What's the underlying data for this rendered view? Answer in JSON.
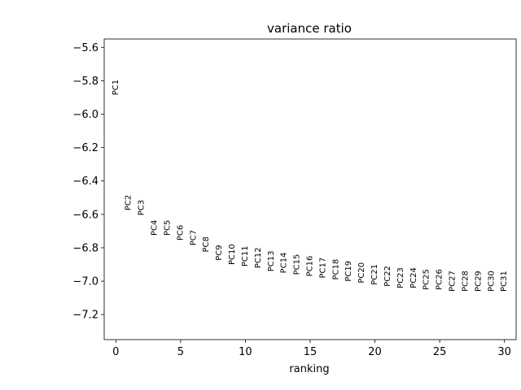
{
  "chart_data": {
    "type": "scatter",
    "title": "variance ratio",
    "xlabel": "ranking",
    "ylabel": "",
    "xlim": [
      -0.9,
      30.9
    ],
    "ylim": [
      -7.35,
      -5.55
    ],
    "xticks": [
      0,
      5,
      10,
      15,
      20,
      25,
      30
    ],
    "xtick_labels": [
      "0",
      "5",
      "10",
      "15",
      "20",
      "25",
      "30"
    ],
    "yticks": [
      -5.6,
      -5.8,
      -6.0,
      -6.2,
      -6.4,
      -6.6,
      -6.8,
      -7.0,
      -7.2
    ],
    "ytick_labels": [
      "−5.6",
      "−5.8",
      "−6.0",
      "−6.2",
      "−6.4",
      "−6.6",
      "−6.8",
      "−7.0",
      "−7.2"
    ],
    "grid": false,
    "points": [
      {
        "label": "PC1",
        "x": 0,
        "y": -5.84
      },
      {
        "label": "PC2",
        "x": 1,
        "y": -6.53
      },
      {
        "label": "PC3",
        "x": 2,
        "y": -6.56
      },
      {
        "label": "PC4",
        "x": 3,
        "y": -6.68
      },
      {
        "label": "PC5",
        "x": 4,
        "y": -6.68
      },
      {
        "label": "PC6",
        "x": 5,
        "y": -6.71
      },
      {
        "label": "PC7",
        "x": 6,
        "y": -6.74
      },
      {
        "label": "PC8",
        "x": 7,
        "y": -6.78
      },
      {
        "label": "PC9",
        "x": 8,
        "y": -6.83
      },
      {
        "label": "PC10",
        "x": 9,
        "y": -6.84
      },
      {
        "label": "PC11",
        "x": 10,
        "y": -6.85
      },
      {
        "label": "PC12",
        "x": 11,
        "y": -6.86
      },
      {
        "label": "PC13",
        "x": 12,
        "y": -6.88
      },
      {
        "label": "PC14",
        "x": 13,
        "y": -6.89
      },
      {
        "label": "PC15",
        "x": 14,
        "y": -6.9
      },
      {
        "label": "PC16",
        "x": 15,
        "y": -6.91
      },
      {
        "label": "PC17",
        "x": 16,
        "y": -6.92
      },
      {
        "label": "PC18",
        "x": 17,
        "y": -6.93
      },
      {
        "label": "PC19",
        "x": 18,
        "y": -6.94
      },
      {
        "label": "PC20",
        "x": 19,
        "y": -6.95
      },
      {
        "label": "PC21",
        "x": 20,
        "y": -6.96
      },
      {
        "label": "PC22",
        "x": 21,
        "y": -6.97
      },
      {
        "label": "PC23",
        "x": 22,
        "y": -6.98
      },
      {
        "label": "PC24",
        "x": 23,
        "y": -6.98
      },
      {
        "label": "PC25",
        "x": 24,
        "y": -6.99
      },
      {
        "label": "PC26",
        "x": 25,
        "y": -6.99
      },
      {
        "label": "PC27",
        "x": 26,
        "y": -7.0
      },
      {
        "label": "PC28",
        "x": 27,
        "y": -7.0
      },
      {
        "label": "PC29",
        "x": 28,
        "y": -7.0
      },
      {
        "label": "PC30",
        "x": 29,
        "y": -7.0
      },
      {
        "label": "PC31",
        "x": 30,
        "y": -7.0
      }
    ]
  }
}
